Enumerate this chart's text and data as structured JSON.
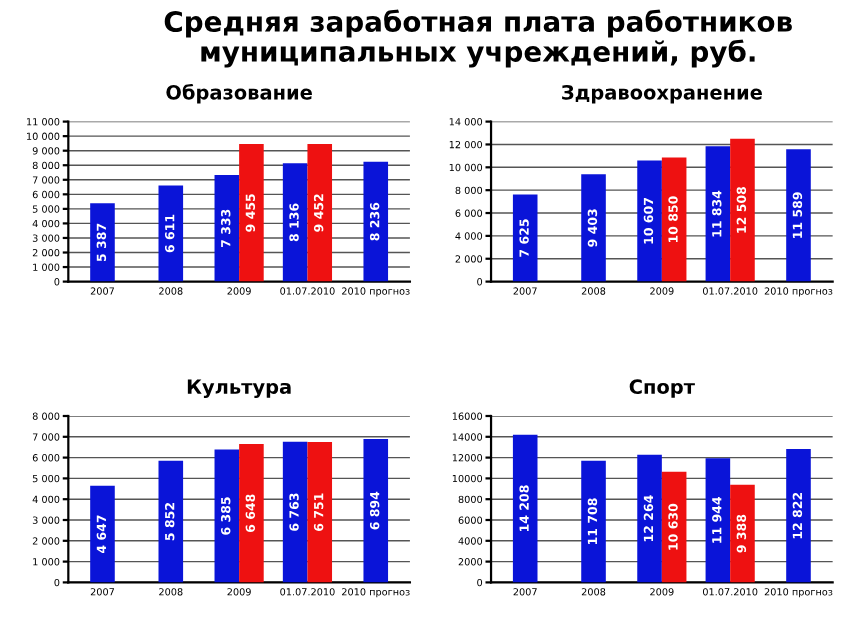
{
  "chart_data": [
    {
      "type": "bar",
      "title": "Образование",
      "annotations": [
        "Средняя заработная плата работников\nмуниципальных учреждений, руб."
      ],
      "categories": [
        "2007",
        "2008",
        "2009",
        "01.07.2010",
        "2010 прогноз"
      ],
      "ylim": [
        0,
        11000
      ],
      "yticks": [
        {
          "value": 0,
          "label": "0"
        },
        {
          "value": 1000,
          "label": "1 000"
        },
        {
          "value": 2000,
          "label": "2 000"
        },
        {
          "value": 3000,
          "label": "3 000"
        },
        {
          "value": 4000,
          "label": "4 000"
        },
        {
          "value": 5000,
          "label": "5 000"
        },
        {
          "value": 6000,
          "label": "6 000"
        },
        {
          "value": 7000,
          "label": "7 000"
        },
        {
          "value": 8000,
          "label": "8 000"
        },
        {
          "value": 9000,
          "label": "9 000"
        },
        {
          "value": 10000,
          "label": "10 000"
        },
        {
          "value": 11000,
          "label": "11 000"
        }
      ],
      "grid": "y",
      "legend": false,
      "series": [
        {
          "color": "#0a14d8",
          "values": [
            5387,
            6611,
            7333,
            8136,
            8236
          ],
          "value_labels": [
            "5 387",
            "6 611",
            "7 333",
            "8 136",
            "8 236"
          ]
        },
        {
          "color": "#ee1111",
          "values": [
            null,
            null,
            9455,
            9452,
            null
          ],
          "value_labels": [
            null,
            null,
            "9 455",
            "9 452",
            null
          ]
        }
      ]
    },
    {
      "type": "bar",
      "title": "Здравоохранение",
      "categories": [
        "2007",
        "2008",
        "2009",
        "01.07.2010",
        "2010 прогноз"
      ],
      "ylim": [
        0,
        14000
      ],
      "yticks": [
        {
          "value": 0,
          "label": "0"
        },
        {
          "value": 2000,
          "label": "2 000"
        },
        {
          "value": 4000,
          "label": "4 000"
        },
        {
          "value": 6000,
          "label": "6 000"
        },
        {
          "value": 8000,
          "label": "8 000"
        },
        {
          "value": 10000,
          "label": "10 000"
        },
        {
          "value": 12000,
          "label": "12 000"
        },
        {
          "value": 14000,
          "label": "14 000"
        }
      ],
      "grid": "y",
      "legend": false,
      "series": [
        {
          "color": "#0a14d8",
          "values": [
            7625,
            9403,
            10607,
            11834,
            11589
          ],
          "value_labels": [
            "7 625",
            "9 403",
            "10 607",
            "11 834",
            "11 589"
          ]
        },
        {
          "color": "#ee1111",
          "values": [
            null,
            null,
            10850,
            12508,
            null
          ],
          "value_labels": [
            null,
            null,
            "10 850",
            "12 508",
            null
          ]
        }
      ]
    },
    {
      "type": "bar",
      "title": "Культура",
      "categories": [
        "2007",
        "2008",
        "2009",
        "01.07.2010",
        "2010 прогноз"
      ],
      "ylim": [
        0,
        8000
      ],
      "yticks": [
        {
          "value": 0,
          "label": "0"
        },
        {
          "value": 1000,
          "label": "1 000"
        },
        {
          "value": 2000,
          "label": "2 000"
        },
        {
          "value": 3000,
          "label": "3 000"
        },
        {
          "value": 4000,
          "label": "4 000"
        },
        {
          "value": 5000,
          "label": "5 000"
        },
        {
          "value": 6000,
          "label": "6 000"
        },
        {
          "value": 7000,
          "label": "7 000"
        },
        {
          "value": 8000,
          "label": "8 000"
        }
      ],
      "grid": "y",
      "legend": false,
      "series": [
        {
          "color": "#0a14d8",
          "values": [
            4647,
            5852,
            6385,
            6763,
            6894
          ],
          "value_labels": [
            "4 647",
            "5 852",
            "6 385",
            "6 763",
            "6 894"
          ]
        },
        {
          "color": "#ee1111",
          "values": [
            null,
            null,
            6648,
            6751,
            null
          ],
          "value_labels": [
            null,
            null,
            "6 648",
            "6 751",
            null
          ]
        }
      ]
    },
    {
      "type": "bar",
      "title": "Спорт",
      "categories": [
        "2007",
        "2008",
        "2009",
        "01.07.2010",
        "2010 прогноз"
      ],
      "ylim": [
        0,
        16000
      ],
      "yticks": [
        0,
        2000,
        4000,
        6000,
        8000,
        10000,
        12000,
        14000,
        16000
      ],
      "grid": "y",
      "legend": false,
      "series": [
        {
          "color": "#0a14d8",
          "values": [
            14208,
            11708,
            12264,
            11944,
            12822
          ],
          "value_labels": [
            "14 208",
            "11 708",
            "12 264",
            "11 944",
            "12 822"
          ]
        },
        {
          "color": "#ee1111",
          "values": [
            null,
            null,
            10630,
            9388,
            null
          ],
          "value_labels": [
            null,
            null,
            "10 630",
            "9 388",
            null
          ]
        }
      ]
    }
  ]
}
